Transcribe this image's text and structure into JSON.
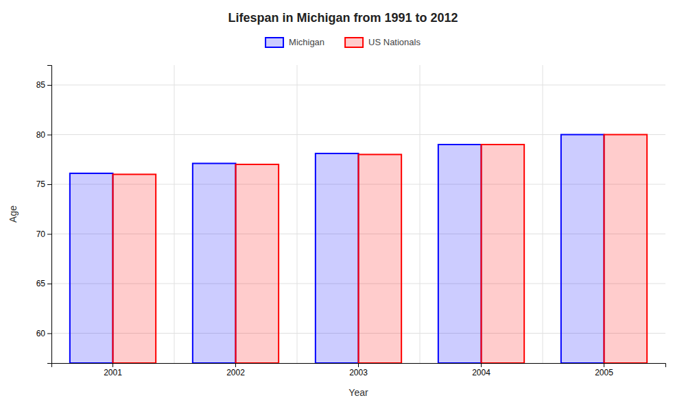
{
  "chart_data": {
    "type": "bar",
    "title": "Lifespan in Michigan from 1991 to 2012",
    "xlabel": "Year",
    "ylabel": "Age",
    "categories": [
      "2001",
      "2002",
      "2003",
      "2004",
      "2005"
    ],
    "series": [
      {
        "name": "Michigan",
        "color": "#0000ff",
        "values": [
          76.1,
          77.1,
          78.1,
          79.0,
          80.0
        ]
      },
      {
        "name": "US Nationals",
        "color": "#ff0000",
        "values": [
          76.0,
          77.0,
          78.0,
          79.0,
          80.0
        ]
      }
    ],
    "ylim": [
      57,
      87
    ],
    "yticks": [
      60,
      65,
      70,
      75,
      80,
      85
    ],
    "grid": true,
    "legend": "top"
  }
}
